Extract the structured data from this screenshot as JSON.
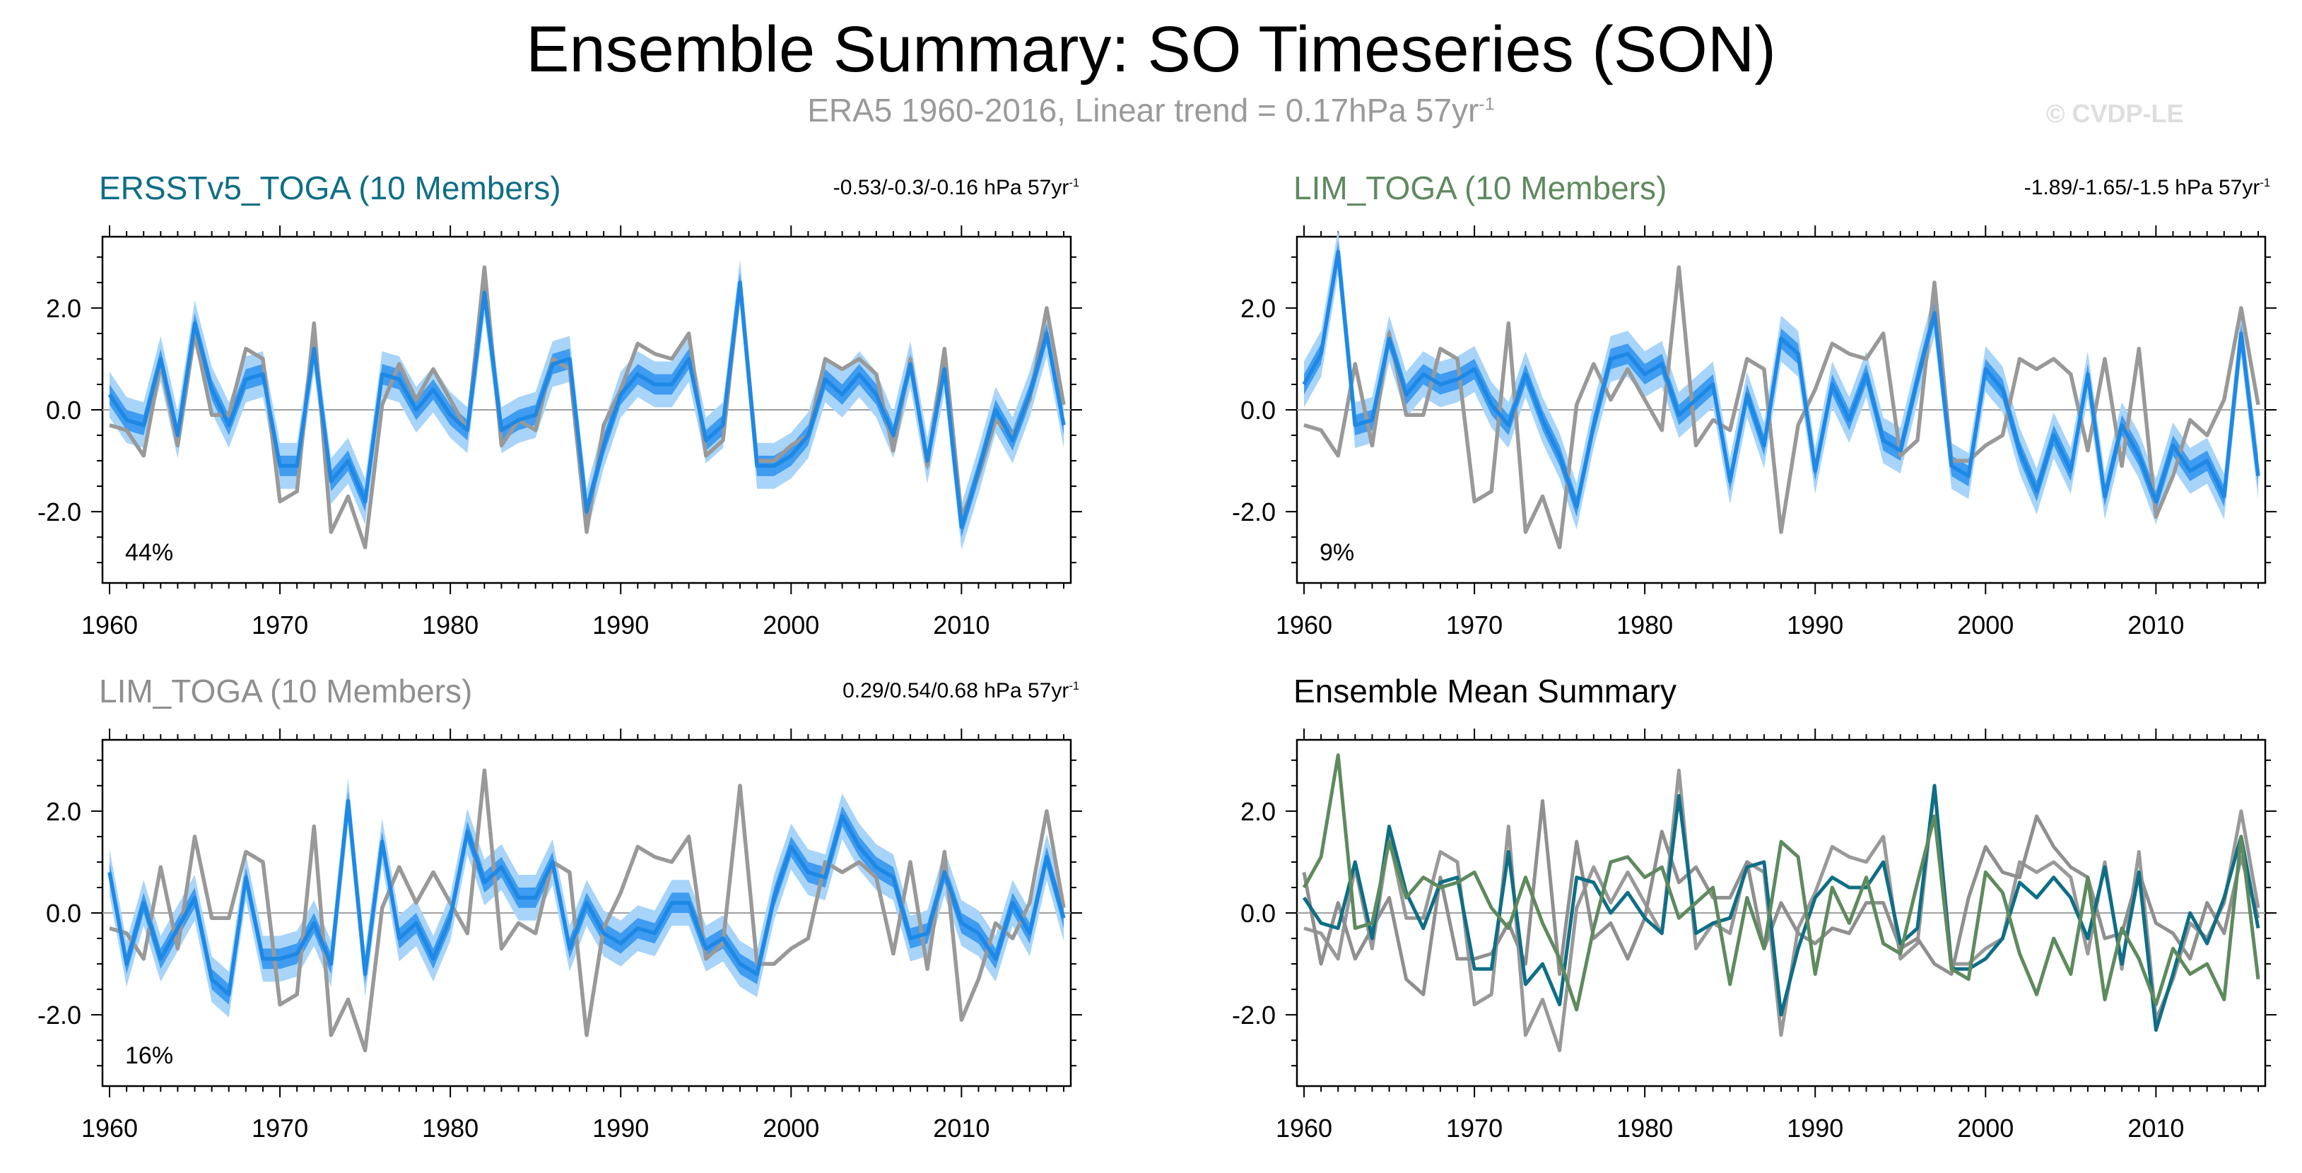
{
  "figure": {
    "title": "Ensemble Summary: SO Timeseries (SON)",
    "subtitle": "ERA5 1960-2016, Linear trend = 0.17hPa 57yr",
    "subtitle_exponent": "-1",
    "credit": "© CVDP-LE"
  },
  "colors": {
    "observed": "#999999",
    "ensemble_mean": "#1e88e5",
    "band_inner": "#3f9cf0",
    "band_outer": "#a8d4fa",
    "ersst_title": "#0e6e86",
    "lim_title": "#5e8a5e",
    "lim2_title": "#8f8f8f",
    "zero_line": "#a0a0a0"
  },
  "chart_data": [
    {
      "type": "line",
      "title": "ERSSTv5_TOGA (10 Members)",
      "title_color_key": "ersst_title",
      "trend_text": "-0.53/-0.3/-0.16 hPa 57yr",
      "trend_exponent": "-1",
      "percent_label": "44%",
      "x": [
        1960,
        1961,
        1962,
        1963,
        1964,
        1965,
        1966,
        1967,
        1968,
        1969,
        1970,
        1971,
        1972,
        1973,
        1974,
        1975,
        1976,
        1977,
        1978,
        1979,
        1980,
        1981,
        1982,
        1983,
        1984,
        1985,
        1986,
        1987,
        1988,
        1989,
        1990,
        1991,
        1992,
        1993,
        1994,
        1995,
        1996,
        1997,
        1998,
        1999,
        2000,
        2001,
        2002,
        2003,
        2004,
        2005,
        2006,
        2007,
        2008,
        2009,
        2010,
        2011,
        2012,
        2013,
        2014,
        2015,
        2016
      ],
      "xticks": [
        "1960",
        "1970",
        "1980",
        "1990",
        "2000",
        "2010"
      ],
      "xlim": [
        1960,
        2016
      ],
      "ylim": [
        -3.4,
        3.4
      ],
      "yticks": [
        "2.0",
        "0.0",
        "-2.0"
      ],
      "series": [
        {
          "name": "ERA5 observed",
          "role": "observed",
          "values": [
            -0.3,
            -0.4,
            -0.9,
            0.9,
            -0.7,
            1.5,
            -0.1,
            -0.1,
            1.2,
            1.0,
            -1.8,
            -1.6,
            1.7,
            -2.4,
            -1.7,
            -2.7,
            0.1,
            0.9,
            0.2,
            0.8,
            0.2,
            -0.4,
            2.8,
            -0.7,
            -0.2,
            -0.4,
            1.0,
            0.8,
            -2.4,
            -0.3,
            0.4,
            1.3,
            1.1,
            1.0,
            1.5,
            -0.9,
            -0.6,
            2.5,
            -1.0,
            -1.0,
            -0.7,
            -0.5,
            1.0,
            0.8,
            1.0,
            0.7,
            -0.8,
            1.0,
            -1.1,
            1.2,
            -2.1,
            -1.3,
            -0.2,
            -0.5,
            0.2,
            2.0,
            0.1
          ]
        },
        {
          "name": "ensemble mean",
          "role": "mean",
          "values": [
            0.3,
            -0.2,
            -0.3,
            1.0,
            -0.5,
            1.7,
            0.4,
            -0.3,
            0.6,
            0.7,
            -1.1,
            -1.1,
            1.2,
            -1.4,
            -1.0,
            -1.8,
            0.7,
            0.6,
            0.0,
            0.4,
            -0.1,
            -0.4,
            2.3,
            -0.4,
            -0.2,
            -0.1,
            0.9,
            1.0,
            -2.0,
            -0.7,
            0.3,
            0.7,
            0.5,
            0.5,
            1.0,
            -0.6,
            -0.3,
            2.5,
            -1.1,
            -1.1,
            -0.9,
            -0.5,
            0.6,
            0.3,
            0.7,
            0.3,
            -0.5,
            0.9,
            -1.0,
            0.8,
            -2.3,
            -1.2,
            0.0,
            -0.6,
            0.3,
            1.5,
            -0.3
          ]
        }
      ],
      "band_inner_halfwidth": 0.2,
      "band_outer_halfwidth": 0.45
    },
    {
      "type": "line",
      "title": "LIM_TOGA (10 Members)",
      "title_color_key": "lim_title",
      "trend_text": "-1.89/-1.65/-1.5 hPa 57yr",
      "trend_exponent": "-1",
      "percent_label": "9%",
      "x": [
        1960,
        1961,
        1962,
        1963,
        1964,
        1965,
        1966,
        1967,
        1968,
        1969,
        1970,
        1971,
        1972,
        1973,
        1974,
        1975,
        1976,
        1977,
        1978,
        1979,
        1980,
        1981,
        1982,
        1983,
        1984,
        1985,
        1986,
        1987,
        1988,
        1989,
        1990,
        1991,
        1992,
        1993,
        1994,
        1995,
        1996,
        1997,
        1998,
        1999,
        2000,
        2001,
        2002,
        2003,
        2004,
        2005,
        2006,
        2007,
        2008,
        2009,
        2010,
        2011,
        2012,
        2013,
        2014,
        2015,
        2016
      ],
      "xticks": [
        "1960",
        "1970",
        "1980",
        "1990",
        "2000",
        "2010"
      ],
      "xlim": [
        1960,
        2016
      ],
      "ylim": [
        -3.4,
        3.4
      ],
      "yticks": [
        "2.0",
        "0.0",
        "-2.0"
      ],
      "series": [
        {
          "name": "ERA5 observed",
          "role": "observed",
          "values": [
            -0.3,
            -0.4,
            -0.9,
            0.9,
            -0.7,
            1.5,
            -0.1,
            -0.1,
            1.2,
            1.0,
            -1.8,
            -1.6,
            1.7,
            -2.4,
            -1.7,
            -2.7,
            0.1,
            0.9,
            0.2,
            0.8,
            0.2,
            -0.4,
            2.8,
            -0.7,
            -0.2,
            -0.4,
            1.0,
            0.8,
            -2.4,
            -0.3,
            0.4,
            1.3,
            1.1,
            1.0,
            1.5,
            -0.9,
            -0.6,
            2.5,
            -1.0,
            -1.0,
            -0.7,
            -0.5,
            1.0,
            0.8,
            1.0,
            0.7,
            -0.8,
            1.0,
            -1.1,
            1.2,
            -2.1,
            -1.3,
            -0.2,
            -0.5,
            0.2,
            2.0,
            0.1
          ]
        },
        {
          "name": "ensemble mean",
          "role": "mean",
          "values": [
            0.5,
            1.1,
            3.1,
            -0.3,
            -0.2,
            1.4,
            0.3,
            0.7,
            0.5,
            0.6,
            0.8,
            0.1,
            -0.3,
            0.7,
            -0.2,
            -0.9,
            -1.9,
            -0.3,
            1.0,
            1.1,
            0.7,
            0.9,
            -0.1,
            0.2,
            0.5,
            -1.4,
            0.3,
            -0.7,
            1.4,
            1.1,
            -1.2,
            0.5,
            -0.2,
            0.7,
            -0.6,
            -0.8,
            0.6,
            1.9,
            -1.1,
            -1.3,
            0.8,
            0.4,
            -0.8,
            -1.6,
            -0.5,
            -1.2,
            0.7,
            -1.7,
            -0.3,
            -0.9,
            -1.8,
            -0.7,
            -1.2,
            -1.0,
            -1.7,
            1.5,
            -1.3
          ]
        }
      ],
      "band_inner_halfwidth": 0.2,
      "band_outer_halfwidth": 0.45
    },
    {
      "type": "line",
      "title": "LIM_TOGA (10 Members)",
      "title_color_key": "lim2_title",
      "trend_text": "0.29/0.54/0.68 hPa 57yr",
      "trend_exponent": "-1",
      "percent_label": "16%",
      "x": [
        1960,
        1961,
        1962,
        1963,
        1964,
        1965,
        1966,
        1967,
        1968,
        1969,
        1970,
        1971,
        1972,
        1973,
        1974,
        1975,
        1976,
        1977,
        1978,
        1979,
        1980,
        1981,
        1982,
        1983,
        1984,
        1985,
        1986,
        1987,
        1988,
        1989,
        1990,
        1991,
        1992,
        1993,
        1994,
        1995,
        1996,
        1997,
        1998,
        1999,
        2000,
        2001,
        2002,
        2003,
        2004,
        2005,
        2006,
        2007,
        2008,
        2009,
        2010,
        2011,
        2012,
        2013,
        2014,
        2015,
        2016
      ],
      "xticks": [
        "1960",
        "1970",
        "1980",
        "1990",
        "2000",
        "2010"
      ],
      "xlim": [
        1960,
        2016
      ],
      "ylim": [
        -3.4,
        3.4
      ],
      "yticks": [
        "2.0",
        "0.0",
        "-2.0"
      ],
      "series": [
        {
          "name": "ERA5 observed",
          "role": "observed",
          "values": [
            -0.3,
            -0.4,
            -0.9,
            0.9,
            -0.7,
            1.5,
            -0.1,
            -0.1,
            1.2,
            1.0,
            -1.8,
            -1.6,
            1.7,
            -2.4,
            -1.7,
            -2.7,
            0.1,
            0.9,
            0.2,
            0.8,
            0.2,
            -0.4,
            2.8,
            -0.7,
            -0.2,
            -0.4,
            1.0,
            0.8,
            -2.4,
            -0.3,
            0.4,
            1.3,
            1.1,
            1.0,
            1.5,
            -0.9,
            -0.6,
            2.5,
            -1.0,
            -1.0,
            -0.7,
            -0.5,
            1.0,
            0.8,
            1.0,
            0.7,
            -0.8,
            1.0,
            -1.1,
            1.2,
            -2.1,
            -1.3,
            -0.2,
            -0.5,
            0.2,
            2.0,
            0.1
          ]
        },
        {
          "name": "ensemble mean",
          "role": "mean",
          "values": [
            0.8,
            -1.0,
            0.2,
            -0.9,
            -0.3,
            0.3,
            -1.3,
            -1.6,
            0.7,
            -0.9,
            -0.9,
            -0.8,
            -0.2,
            -1.0,
            2.2,
            -1.2,
            1.4,
            -0.5,
            -0.2,
            -0.9,
            -0.1,
            1.6,
            0.6,
            0.9,
            0.3,
            0.3,
            1.0,
            -0.7,
            0.2,
            -0.4,
            -0.6,
            -0.3,
            -0.4,
            0.2,
            0.2,
            -0.7,
            -0.5,
            -1.0,
            -1.2,
            0.3,
            1.3,
            0.8,
            0.7,
            1.9,
            1.3,
            0.9,
            0.7,
            -0.5,
            -0.4,
            0.8,
            -0.2,
            -0.4,
            -0.9,
            0.2,
            -0.4,
            1.1,
            -0.1
          ]
        }
      ],
      "band_inner_halfwidth": 0.2,
      "band_outer_halfwidth": 0.45
    },
    {
      "type": "line",
      "title": "Ensemble Mean Summary",
      "title_color_key": null,
      "x": [
        1960,
        1961,
        1962,
        1963,
        1964,
        1965,
        1966,
        1967,
        1968,
        1969,
        1970,
        1971,
        1972,
        1973,
        1974,
        1975,
        1976,
        1977,
        1978,
        1979,
        1980,
        1981,
        1982,
        1983,
        1984,
        1985,
        1986,
        1987,
        1988,
        1989,
        1990,
        1991,
        1992,
        1993,
        1994,
        1995,
        1996,
        1997,
        1998,
        1999,
        2000,
        2001,
        2002,
        2003,
        2004,
        2005,
        2006,
        2007,
        2008,
        2009,
        2010,
        2011,
        2012,
        2013,
        2014,
        2015,
        2016
      ],
      "xticks": [
        "1960",
        "1970",
        "1980",
        "1990",
        "2000",
        "2010"
      ],
      "xlim": [
        1960,
        2016
      ],
      "ylim": [
        -3.4,
        3.4
      ],
      "yticks": [
        "2.0",
        "0.0",
        "-2.0"
      ],
      "series": [
        {
          "name": "ERA5 observed",
          "color_key": "observed",
          "values": [
            -0.3,
            -0.4,
            -0.9,
            0.9,
            -0.7,
            1.5,
            -0.1,
            -0.1,
            1.2,
            1.0,
            -1.8,
            -1.6,
            1.7,
            -2.4,
            -1.7,
            -2.7,
            0.1,
            0.9,
            0.2,
            0.8,
            0.2,
            -0.4,
            2.8,
            -0.7,
            -0.2,
            -0.4,
            1.0,
            0.8,
            -2.4,
            -0.3,
            0.4,
            1.3,
            1.1,
            1.0,
            1.5,
            -0.9,
            -0.6,
            2.5,
            -1.0,
            -1.0,
            -0.7,
            -0.5,
            1.0,
            0.8,
            1.0,
            0.7,
            -0.8,
            1.0,
            -1.1,
            1.2,
            -2.1,
            -1.3,
            -0.2,
            -0.5,
            0.2,
            2.0,
            0.1
          ]
        },
        {
          "name": "LIM_TOGA (10 Members)",
          "color_key": "lim2_title",
          "values": [
            0.8,
            -1.0,
            0.2,
            -0.9,
            -0.3,
            0.3,
            -1.3,
            -1.6,
            0.7,
            -0.9,
            -0.9,
            -0.8,
            -0.2,
            -1.0,
            2.2,
            -1.2,
            1.4,
            -0.5,
            -0.2,
            -0.9,
            -0.1,
            1.6,
            0.6,
            0.9,
            0.3,
            0.3,
            1.0,
            -0.7,
            0.2,
            -0.4,
            -0.6,
            -0.3,
            -0.4,
            0.2,
            0.2,
            -0.7,
            -0.5,
            -1.0,
            -1.2,
            0.3,
            1.3,
            0.8,
            0.7,
            1.9,
            1.3,
            0.9,
            0.7,
            -0.5,
            -0.4,
            0.8,
            -0.2,
            -0.4,
            -0.9,
            0.2,
            -0.4,
            1.1,
            -0.1
          ]
        },
        {
          "name": "ERSSTv5_TOGA (10 Members)",
          "color_key": "ersst_title",
          "values": [
            0.3,
            -0.2,
            -0.3,
            1.0,
            -0.5,
            1.7,
            0.4,
            -0.3,
            0.6,
            0.7,
            -1.1,
            -1.1,
            1.2,
            -1.4,
            -1.0,
            -1.8,
            0.7,
            0.6,
            0.0,
            0.4,
            -0.1,
            -0.4,
            2.3,
            -0.4,
            -0.2,
            -0.1,
            0.9,
            1.0,
            -2.0,
            -0.7,
            0.3,
            0.7,
            0.5,
            0.5,
            1.0,
            -0.6,
            -0.3,
            2.5,
            -1.1,
            -1.1,
            -0.9,
            -0.5,
            0.6,
            0.3,
            0.7,
            0.3,
            -0.5,
            0.9,
            -1.0,
            0.8,
            -2.3,
            -1.2,
            0.0,
            -0.6,
            0.3,
            1.5,
            -0.3
          ]
        },
        {
          "name": "LIM_TOGA (10 Members)",
          "color_key": "lim_title",
          "values": [
            0.5,
            1.1,
            3.1,
            -0.3,
            -0.2,
            1.4,
            0.3,
            0.7,
            0.5,
            0.6,
            0.8,
            0.1,
            -0.3,
            0.7,
            -0.2,
            -0.9,
            -1.9,
            -0.3,
            1.0,
            1.1,
            0.7,
            0.9,
            -0.1,
            0.2,
            0.5,
            -1.4,
            0.3,
            -0.7,
            1.4,
            1.1,
            -1.2,
            0.5,
            -0.2,
            0.7,
            -0.6,
            -0.8,
            0.6,
            1.9,
            -1.1,
            -1.3,
            0.8,
            0.4,
            -0.8,
            -1.6,
            -0.5,
            -1.2,
            0.7,
            -1.7,
            -0.3,
            -0.9,
            -1.8,
            -0.7,
            -1.2,
            -1.0,
            -1.7,
            1.5,
            -1.3
          ]
        }
      ]
    }
  ]
}
